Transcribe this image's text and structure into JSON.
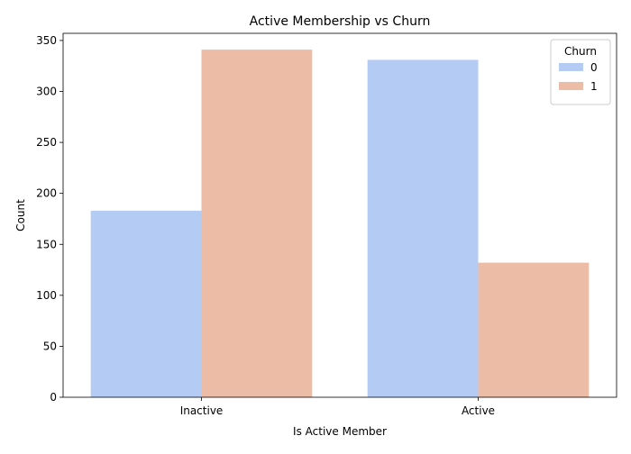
{
  "chart_data": {
    "type": "bar",
    "title": "Active Membership vs Churn",
    "xlabel": "Is Active Member",
    "ylabel": "Count",
    "categories": [
      "Inactive",
      "Active"
    ],
    "ylim": [
      0,
      357
    ],
    "yticks": [
      0,
      50,
      100,
      150,
      200,
      250,
      300,
      350
    ],
    "grid": false,
    "legend": {
      "title": "Churn",
      "placement": "top-right"
    },
    "series": [
      {
        "name": "0",
        "values": [
          183,
          331
        ],
        "color": "#b4cbf4"
      },
      {
        "name": "1",
        "values": [
          341,
          132
        ],
        "color": "#ecbca7"
      }
    ]
  }
}
